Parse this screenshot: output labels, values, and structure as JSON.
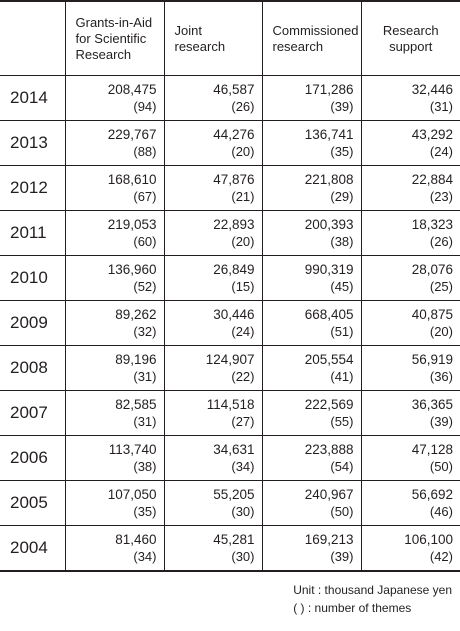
{
  "header": {
    "blank": "",
    "col1": "Grants-in-Aid for Scientific Research",
    "col2": "Joint research",
    "col3": "Commissioned research",
    "col4": "Research support"
  },
  "rows": [
    {
      "year": "2014",
      "values": [
        "208,475",
        "46,587",
        "171,286",
        "32,446"
      ],
      "themes": [
        "(94)",
        "(26)",
        "(39)",
        "(31)"
      ]
    },
    {
      "year": "2013",
      "values": [
        "229,767",
        "44,276",
        "136,741",
        "43,292"
      ],
      "themes": [
        "(88)",
        "(20)",
        "(35)",
        "(24)"
      ]
    },
    {
      "year": "2012",
      "values": [
        "168,610",
        "47,876",
        "221,808",
        "22,884"
      ],
      "themes": [
        "(67)",
        "(21)",
        "(29)",
        "(23)"
      ]
    },
    {
      "year": "2011",
      "values": [
        "219,053",
        "22,893",
        "200,393",
        "18,323"
      ],
      "themes": [
        "(60)",
        "(20)",
        "(38)",
        "(26)"
      ]
    },
    {
      "year": "2010",
      "values": [
        "136,960",
        "26,849",
        "990,319",
        "28,076"
      ],
      "themes": [
        "(52)",
        "(15)",
        "(45)",
        "(25)"
      ]
    },
    {
      "year": "2009",
      "values": [
        "89,262",
        "30,446",
        "668,405",
        "40,875"
      ],
      "themes": [
        "(32)",
        "(24)",
        "(51)",
        "(20)"
      ]
    },
    {
      "year": "2008",
      "values": [
        "89,196",
        "124,907",
        "205,554",
        "56,919"
      ],
      "themes": [
        "(31)",
        "(22)",
        "(41)",
        "(36)"
      ]
    },
    {
      "year": "2007",
      "values": [
        "82,585",
        "114,518",
        "222,569",
        "36,365"
      ],
      "themes": [
        "(31)",
        "(27)",
        "(55)",
        "(39)"
      ]
    },
    {
      "year": "2006",
      "values": [
        "113,740",
        "34,631",
        "223,888",
        "47,128"
      ],
      "themes": [
        "(38)",
        "(34)",
        "(54)",
        "(50)"
      ]
    },
    {
      "year": "2005",
      "values": [
        "107,050",
        "55,205",
        "240,967",
        "56,692"
      ],
      "themes": [
        "(35)",
        "(30)",
        "(50)",
        "(46)"
      ]
    },
    {
      "year": "2004",
      "values": [
        "81,460",
        "45,281",
        "169,213",
        "106,100"
      ],
      "themes": [
        "(34)",
        "(30)",
        "(39)",
        "(42)"
      ]
    }
  ],
  "notes": {
    "unit": "Unit : thousand Japanese yen",
    "themes": "( ) : number of themes"
  }
}
